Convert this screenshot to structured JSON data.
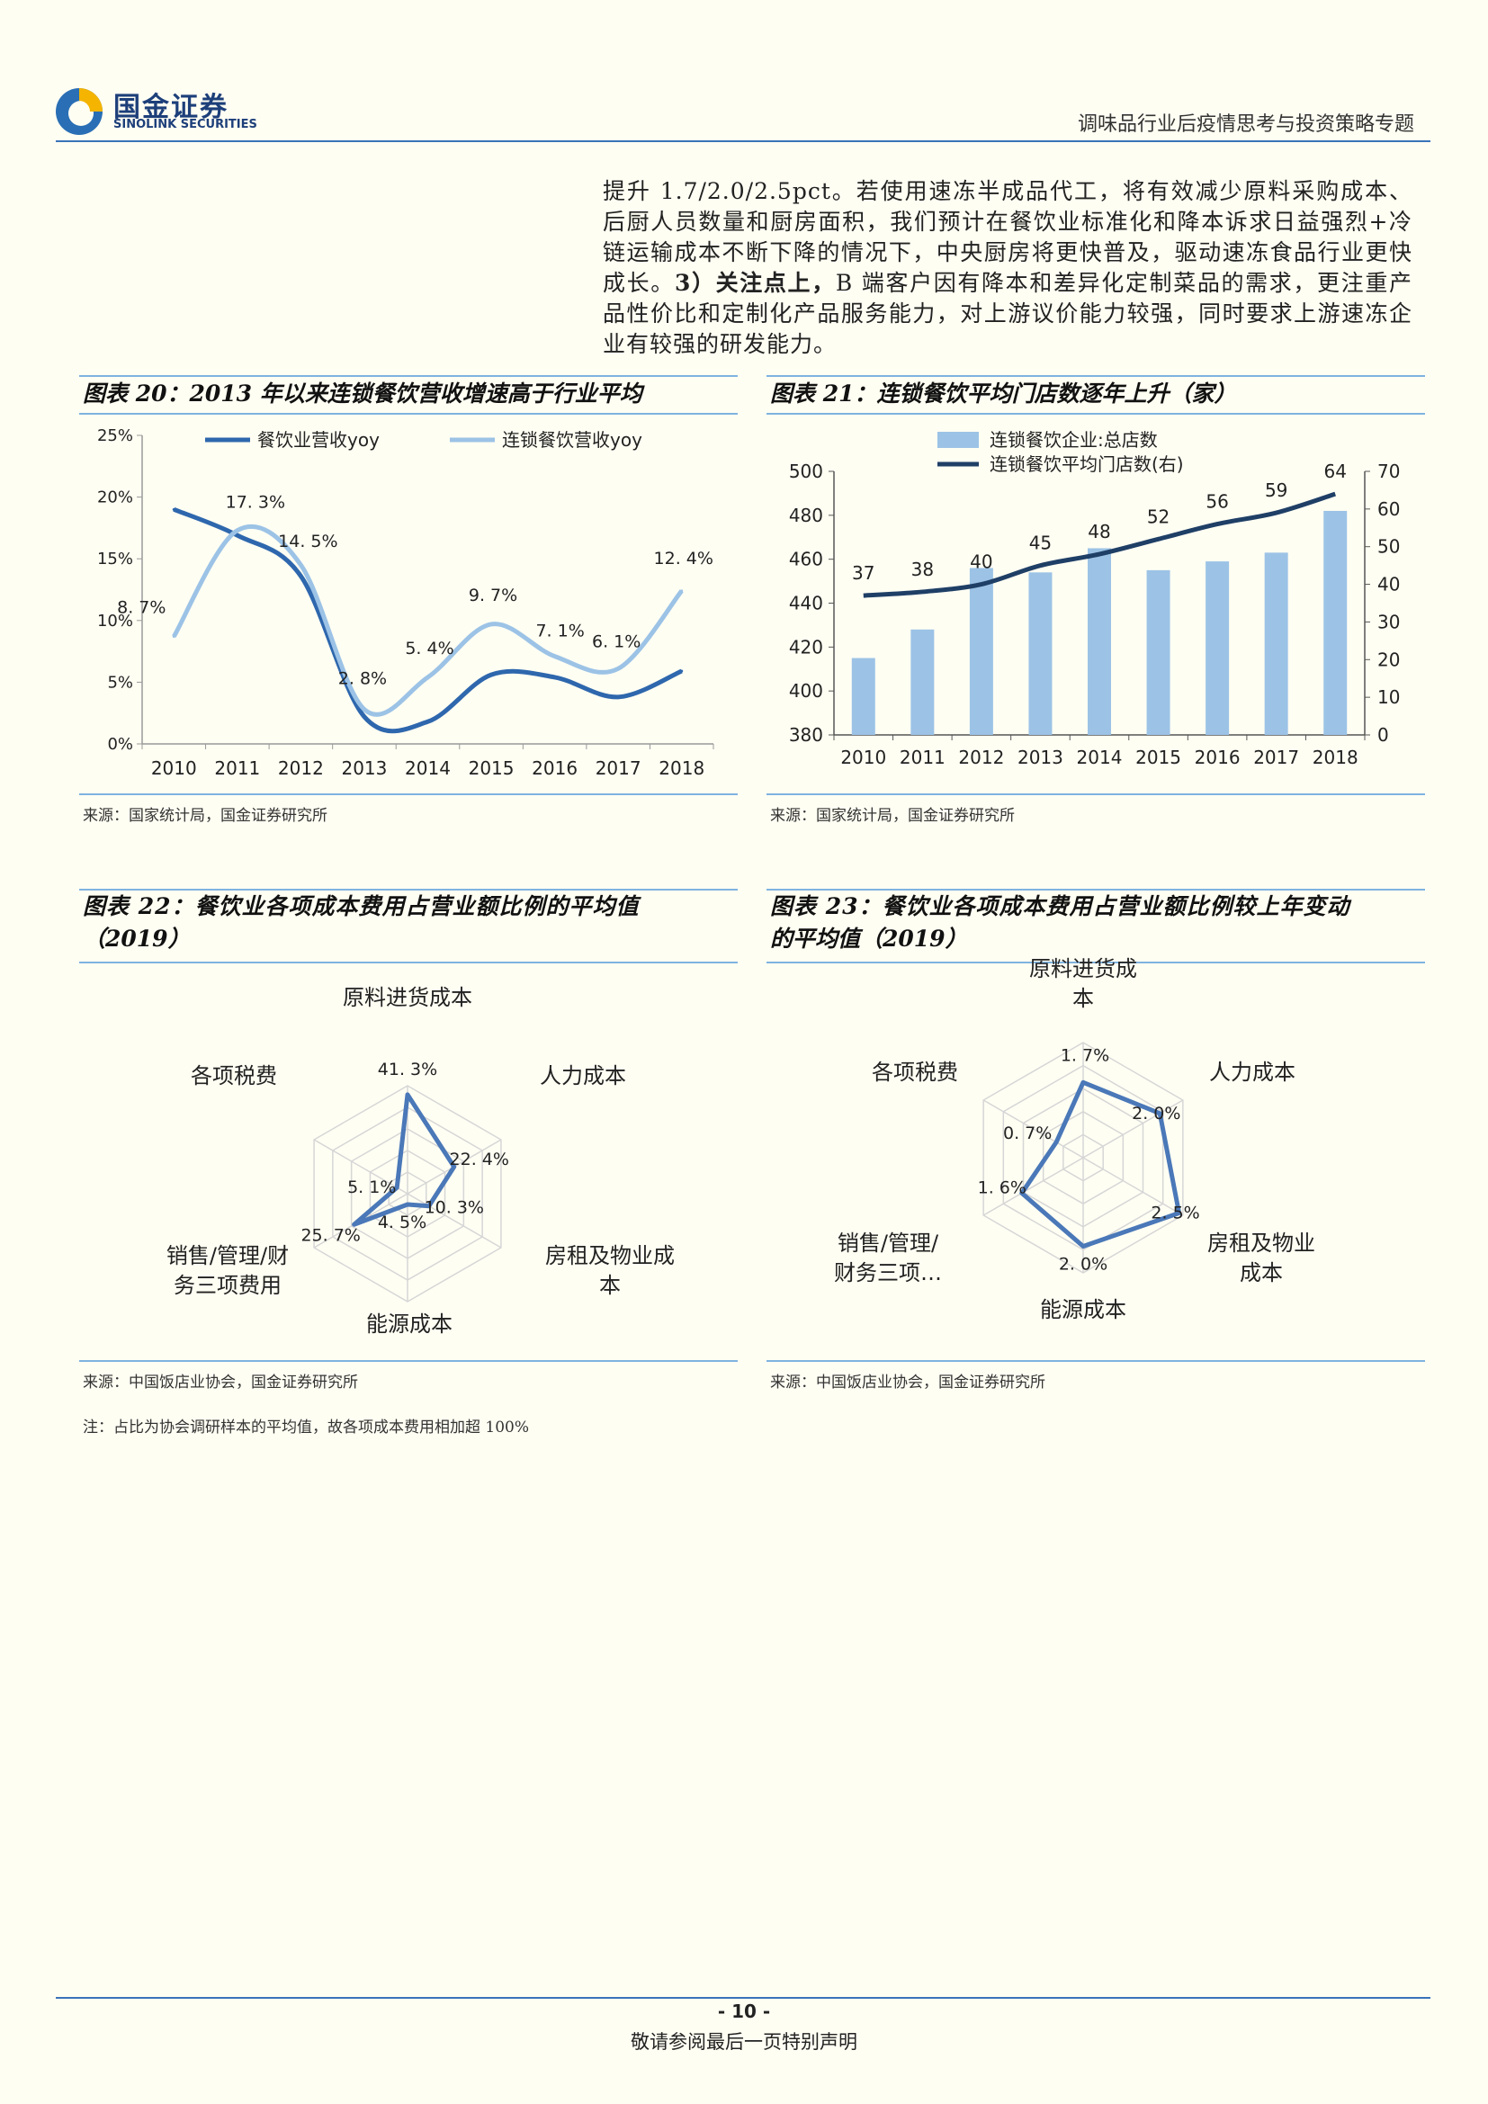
{
  "header": {
    "logo_cn": "国金证券",
    "logo_en": "SINOLINK SECURITIES",
    "report_title": "调味品行业后疫情思考与投资策略专题"
  },
  "body_text": {
    "part1": "提升 1.7/2.0/2.5pct。若使用速冻半成品代工，将有效减少原料采购成本、后厨人员数量和厨房面积，我们预计在餐饮业标准化和降本诉求日益强烈+冷链运输成本不断下降的情况下，中央厨房将更快普及，驱动速冻食品行业更快成长。",
    "bold": "3）关注点上，",
    "part2": "B 端客户因有降本和差异化定制菜品的需求，更注重产品性价比和定制化产品服务能力，对上游议价能力较强，同时要求上游速冻企业有较强的研发能力。"
  },
  "figures": [
    {
      "title": "图表 20：2013 年以来连锁餐饮营收增速高于行业平均",
      "source": "来源：国家统计局，国金证券研究所"
    },
    {
      "title": "图表 21：连锁餐饮平均门店数逐年上升（家）",
      "source": "来源：国家统计局，国金证券研究所"
    },
    {
      "title_line1": "图表 22：餐饮业各项成本费用占营业额比例的平均值",
      "title_line2": "（2019）",
      "source": "来源：中国饭店业协会，国金证券研究所"
    },
    {
      "title_line1": "图表 23：餐饮业各项成本费用占营业额比例较上年变动",
      "title_line2": "的平均值（2019）",
      "source": "来源：中国饭店业协会，国金证券研究所"
    }
  ],
  "note": "注：占比为协会调研样本的平均值，故各项成本费用相加超 100%",
  "footer": {
    "page": "- 10 -",
    "disclaimer": "敬请参阅最后一页特别声明"
  },
  "colors": {
    "dark_line": "#2e67ad",
    "light_line": "#9cc3e6",
    "bar": "#9cc3e6",
    "rule": "#3a74b9",
    "radar": "#4a78b8"
  },
  "chart_data": [
    {
      "type": "line",
      "categories": [
        "2010",
        "2011",
        "2012",
        "2013",
        "2014",
        "2015",
        "2016",
        "2017",
        "2018"
      ],
      "series": [
        {
          "name": "餐饮业营收yoy",
          "values": [
            19.0,
            16.9,
            13.6,
            2.2,
            1.8,
            5.6,
            5.4,
            3.8,
            5.9
          ]
        },
        {
          "name": "连锁餐饮营收yoy",
          "values": [
            8.7,
            17.3,
            14.5,
            2.8,
            5.4,
            9.7,
            7.1,
            6.1,
            12.4
          ]
        }
      ],
      "data_labels": [
        "8. 7%",
        "17. 3%",
        "14. 5%",
        "2. 8%",
        "5. 4%",
        "9. 7%",
        "7. 1%",
        "6. 1%",
        "12. 4%"
      ],
      "yticks": [
        "0%",
        "5%",
        "10%",
        "15%",
        "20%",
        "25%"
      ],
      "ylim": [
        0,
        25
      ]
    },
    {
      "type": "bar",
      "categories": [
        "2010",
        "2011",
        "2012",
        "2013",
        "2014",
        "2015",
        "2016",
        "2017",
        "2018"
      ],
      "series": [
        {
          "name": "连锁餐饮企业:总店数",
          "type": "bar",
          "axis": "left",
          "values": [
            415,
            428,
            456,
            454,
            465,
            455,
            459,
            463,
            482
          ]
        },
        {
          "name": "连锁餐饮平均门店数(右)",
          "type": "line",
          "axis": "right",
          "values": [
            37,
            38,
            40,
            45,
            48,
            52,
            56,
            59,
            64
          ]
        }
      ],
      "left_ticks": [
        "380",
        "400",
        "420",
        "440",
        "460",
        "480",
        "500"
      ],
      "right_ticks": [
        "0",
        "10",
        "20",
        "30",
        "40",
        "50",
        "60",
        "70"
      ],
      "ylim_left": [
        380,
        500
      ],
      "ylim_right": [
        0,
        70
      ]
    },
    {
      "type": "radar",
      "axes": [
        "原料进货成本",
        "人力成本",
        "房租及物业成本",
        "能源成本",
        "销售/管理/财务三项费用",
        "各项税费"
      ],
      "axis_labels": [
        [
          "原料进货成本"
        ],
        [
          "人力成本"
        ],
        [
          "房租及物业成",
          "本"
        ],
        [
          "能源成本"
        ],
        [
          "销售/管理/财",
          "务三项费用"
        ],
        [
          "各项税费"
        ]
      ],
      "values": [
        41.3,
        22.4,
        10.3,
        4.5,
        25.7,
        5.1
      ],
      "value_labels": [
        "41. 3%",
        "22. 4%",
        "10. 3%",
        "4. 5%",
        "25. 7%",
        "5. 1%"
      ],
      "max": 45
    },
    {
      "type": "radar",
      "axes": [
        "原料进货成本",
        "人力成本",
        "房租及物业成本",
        "能源成本",
        "销售/管理/财务三项费用",
        "各项税费"
      ],
      "axis_labels": [
        [
          "原料进货成",
          "本"
        ],
        [
          "人力成本"
        ],
        [
          "房租及物业",
          "成本"
        ],
        [
          "能源成本"
        ],
        [
          "销售/管理/",
          "财务三项…"
        ],
        [
          "各项税费"
        ]
      ],
      "values": [
        1.7,
        2.0,
        2.5,
        2.0,
        1.6,
        0.7
      ],
      "value_labels": [
        "1. 7%",
        "2. 0%",
        "2. 5%",
        "2. 0%",
        "1. 6%",
        "0. 7%"
      ],
      "max": 2.6
    }
  ]
}
